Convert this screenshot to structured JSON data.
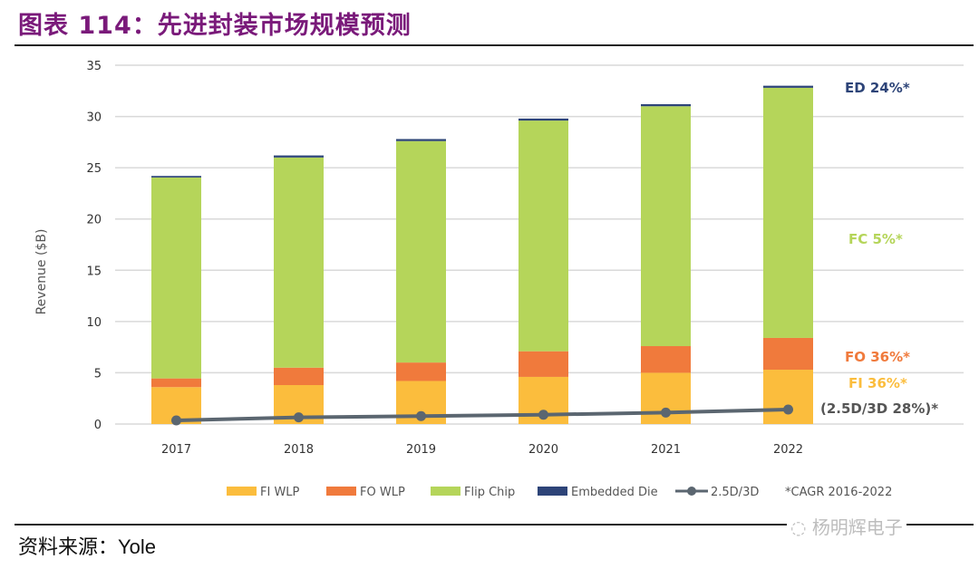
{
  "header": {
    "title": "图表 114：先进封装市场规模预测"
  },
  "footer": {
    "source": "资料来源：Yole",
    "watermark": "杨明辉电子"
  },
  "chart_data": {
    "type": "bar",
    "stacked": true,
    "title": "",
    "xlabel": "",
    "ylabel": "Revenue ($B)",
    "ylim": [
      0,
      35
    ],
    "yticks": [
      0,
      5,
      10,
      15,
      20,
      25,
      30,
      35
    ],
    "grid": true,
    "categories": [
      "2017",
      "2018",
      "2019",
      "2020",
      "2021",
      "2022"
    ],
    "series": [
      {
        "name": "FI WLP",
        "color": "#fbbd3d",
        "values": [
          3.6,
          3.8,
          4.2,
          4.6,
          5.0,
          5.3
        ]
      },
      {
        "name": "FO WLP",
        "color": "#f07a3c",
        "values": [
          0.85,
          1.7,
          1.8,
          2.5,
          2.6,
          3.1
        ]
      },
      {
        "name": "Flip Chip",
        "color": "#b5d55a",
        "values": [
          19.6,
          20.5,
          21.6,
          22.5,
          23.4,
          24.4
        ]
      },
      {
        "name": "Embedded Die",
        "color": "#2d4478",
        "values": [
          0.15,
          0.2,
          0.2,
          0.2,
          0.2,
          0.2
        ]
      }
    ],
    "line_series": {
      "name": "2.5D/3D",
      "color": "#5b6670",
      "values": [
        0.35,
        0.65,
        0.77,
        0.91,
        1.12,
        1.41
      ]
    },
    "legend_position": "bottom",
    "legend_note": "*CAGR 2016-2022",
    "annotations": [
      {
        "text": "ED 24%*",
        "color": "#2d4478"
      },
      {
        "text": "FC 5%*",
        "color": "#b5d55a"
      },
      {
        "text": "FO 36%*",
        "color": "#f07a3c"
      },
      {
        "text": "FI 36%*",
        "color": "#fbbd3d"
      },
      {
        "text": "(2.5D/3D 28%)*",
        "color": "#555555"
      }
    ]
  }
}
